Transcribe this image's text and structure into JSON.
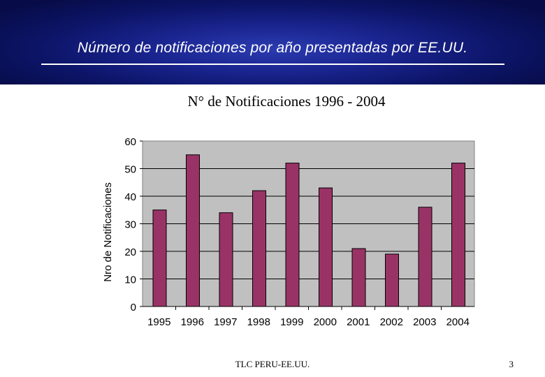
{
  "slide": {
    "header_title": "Número de notificaciones por año presentadas por EE.UU.",
    "chart_title": "N° de Notificaciones 1996 - 2004",
    "footer": "TLC PERU-EE.UU.",
    "page_number": "3"
  },
  "colors": {
    "header_bg": "#0c1466",
    "plot_bg": "#c0c0c0",
    "bar_fill": "#993366"
  },
  "chart_data": {
    "type": "bar",
    "title": "N° de Notificaciones 1996 - 2004",
    "xlabel": "",
    "ylabel": "Nro de Notificaciones",
    "categories": [
      "1995",
      "1996",
      "1997",
      "1998",
      "1999",
      "2000",
      "2001",
      "2002",
      "2003",
      "2004"
    ],
    "values": [
      35,
      55,
      34,
      42,
      52,
      43,
      21,
      19,
      36,
      52
    ],
    "ylim": [
      0,
      60
    ],
    "yticks": [
      0,
      10,
      20,
      30,
      40,
      50,
      60
    ],
    "grid": true,
    "legend": "none"
  }
}
